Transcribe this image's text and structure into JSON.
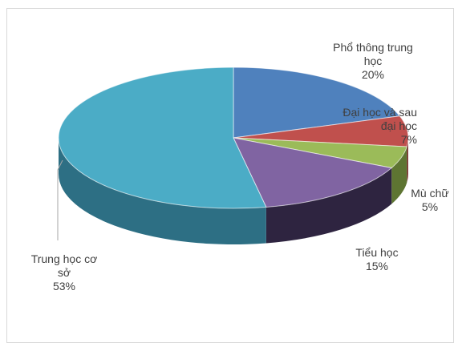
{
  "chart_data": {
    "type": "pie",
    "style": "3d",
    "slices": [
      {
        "name": "Phổ thông trung học",
        "value": 20,
        "value_label": "20%",
        "label_lines": [
          "Phổ thông trung",
          "học"
        ],
        "color": "#4F81BD",
        "side_color": "#2E4D75"
      },
      {
        "name": "Đại học và sau đại học",
        "value": 7,
        "value_label": "7%",
        "label_lines": [
          "Đại học và sau",
          "đại học"
        ],
        "color": "#C0504D",
        "side_color": "#7A2E2C"
      },
      {
        "name": "Mù chữ",
        "value": 5,
        "value_label": "5%",
        "label_lines": [
          "Mù chữ"
        ],
        "color": "#9BBB59",
        "side_color": "#5E7532"
      },
      {
        "name": "Tiểu học",
        "value": 15,
        "value_label": "15%",
        "label_lines": [
          "Tiểu học"
        ],
        "color": "#8064A2",
        "side_color": "#2E2440"
      },
      {
        "name": "Trung học cơ sở",
        "value": 53,
        "value_label": "53%",
        "label_lines": [
          "Trung học cơ",
          "sở"
        ],
        "color": "#4BACC6",
        "side_color": "#2D6F84"
      }
    ],
    "start_angle_deg": 0,
    "legend": "none"
  }
}
